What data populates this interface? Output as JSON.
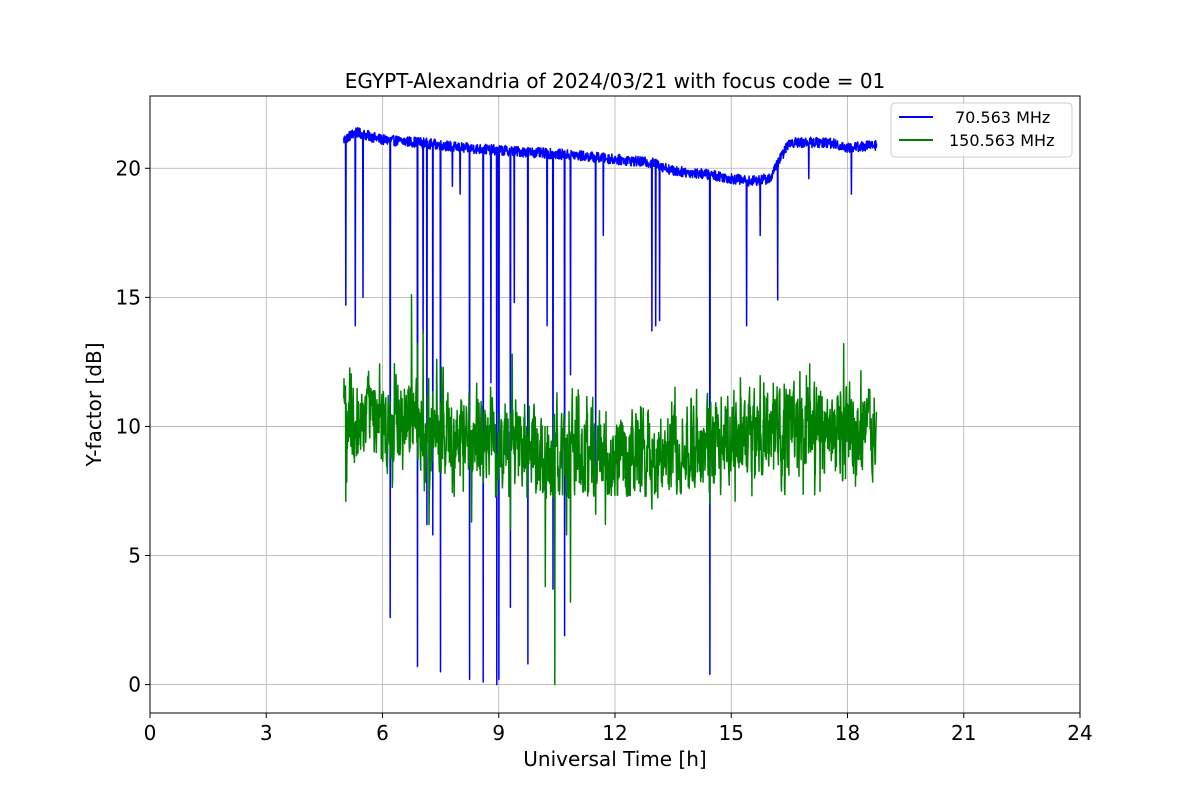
{
  "chart_data": {
    "type": "line",
    "title": "EGYPT-Alexandria of 2024/03/21 with focus code = 01",
    "xlabel": "Universal Time [h]",
    "ylabel": "Y-factor [dB]",
    "xlim": [
      0,
      24
    ],
    "ylim": [
      -1.1,
      22.8
    ],
    "xticks": [
      0,
      3,
      6,
      9,
      12,
      15,
      18,
      21,
      24
    ],
    "yticks": [
      0,
      5,
      10,
      15,
      20
    ],
    "grid": true,
    "legend_position": "top-right",
    "series": [
      {
        "name": "70.563 MHz",
        "color": "#0000ff",
        "baseline": [
          [
            5.0,
            21.1
          ],
          [
            5.3,
            21.4
          ],
          [
            6.0,
            21.1
          ],
          [
            7.0,
            21.0
          ],
          [
            8.0,
            20.8
          ],
          [
            9.0,
            20.7
          ],
          [
            10.0,
            20.6
          ],
          [
            11.0,
            20.5
          ],
          [
            12.0,
            20.35
          ],
          [
            13.0,
            20.2
          ],
          [
            13.5,
            19.9
          ],
          [
            14.5,
            19.75
          ],
          [
            15.0,
            19.6
          ],
          [
            15.5,
            19.5
          ],
          [
            16.0,
            19.6
          ],
          [
            16.2,
            20.2
          ],
          [
            16.5,
            21.0
          ],
          [
            17.5,
            21.0
          ],
          [
            18.0,
            20.8
          ],
          [
            18.75,
            20.9
          ]
        ],
        "noise": 0.2,
        "dips": [
          [
            5.05,
            14.7
          ],
          [
            5.3,
            13.9
          ],
          [
            5.5,
            15.0
          ],
          [
            6.2,
            2.6
          ],
          [
            6.9,
            0.7
          ],
          [
            7.05,
            13.6
          ],
          [
            7.15,
            6.2
          ],
          [
            7.3,
            5.8
          ],
          [
            7.5,
            0.5
          ],
          [
            7.8,
            19.3
          ],
          [
            8.0,
            19.0
          ],
          [
            8.25,
            0.2
          ],
          [
            8.6,
            0.1
          ],
          [
            8.8,
            11.7
          ],
          [
            8.95,
            0.0
          ],
          [
            9.0,
            0.2
          ],
          [
            9.3,
            3.0
          ],
          [
            9.4,
            14.8
          ],
          [
            9.75,
            0.8
          ],
          [
            10.25,
            13.9
          ],
          [
            10.4,
            3.7
          ],
          [
            10.7,
            1.9
          ],
          [
            10.85,
            12.0
          ],
          [
            11.5,
            6.7
          ],
          [
            11.7,
            17.4
          ],
          [
            12.95,
            13.7
          ],
          [
            13.05,
            13.9
          ],
          [
            13.15,
            14.1
          ],
          [
            14.45,
            0.4
          ],
          [
            15.4,
            13.9
          ],
          [
            15.75,
            17.4
          ],
          [
            16.2,
            14.9
          ],
          [
            17.0,
            19.6
          ],
          [
            18.1,
            19.0
          ]
        ]
      },
      {
        "name": "150.563 MHz",
        "color": "#008000",
        "baseline": [
          [
            5.0,
            10.3
          ],
          [
            6.0,
            10.2
          ],
          [
            7.0,
            10.0
          ],
          [
            8.0,
            9.5
          ],
          [
            9.0,
            9.2
          ],
          [
            10.0,
            9.0
          ],
          [
            11.0,
            8.9
          ],
          [
            12.0,
            8.9
          ],
          [
            13.0,
            9.0
          ],
          [
            14.0,
            9.2
          ],
          [
            15.0,
            9.4
          ],
          [
            16.0,
            9.8
          ],
          [
            17.0,
            10.0
          ],
          [
            18.0,
            9.9
          ],
          [
            18.75,
            9.8
          ]
        ],
        "noise": 1.4,
        "lower_bound": 7.2,
        "spikes": [
          [
            6.75,
            15.1
          ],
          [
            6.9,
            13.2
          ],
          [
            7.05,
            13.7
          ],
          [
            7.4,
            12.6
          ],
          [
            9.35,
            12.8
          ],
          [
            17.9,
            13.2
          ],
          [
            6.35,
            12.0
          ],
          [
            10.5,
            11.3
          ]
        ],
        "dips": [
          [
            5.05,
            7.1
          ],
          [
            7.2,
            6.2
          ],
          [
            8.3,
            6.3
          ],
          [
            9.3,
            6.0
          ],
          [
            10.2,
            3.8
          ],
          [
            10.45,
            0.0
          ],
          [
            10.75,
            5.8
          ],
          [
            10.85,
            3.2
          ],
          [
            11.5,
            6.6
          ],
          [
            11.75,
            6.2
          ],
          [
            12.95,
            6.8
          ],
          [
            14.45,
            7.0
          ],
          [
            15.1,
            7.1
          ],
          [
            16.3,
            7.5
          ]
        ]
      }
    ]
  }
}
